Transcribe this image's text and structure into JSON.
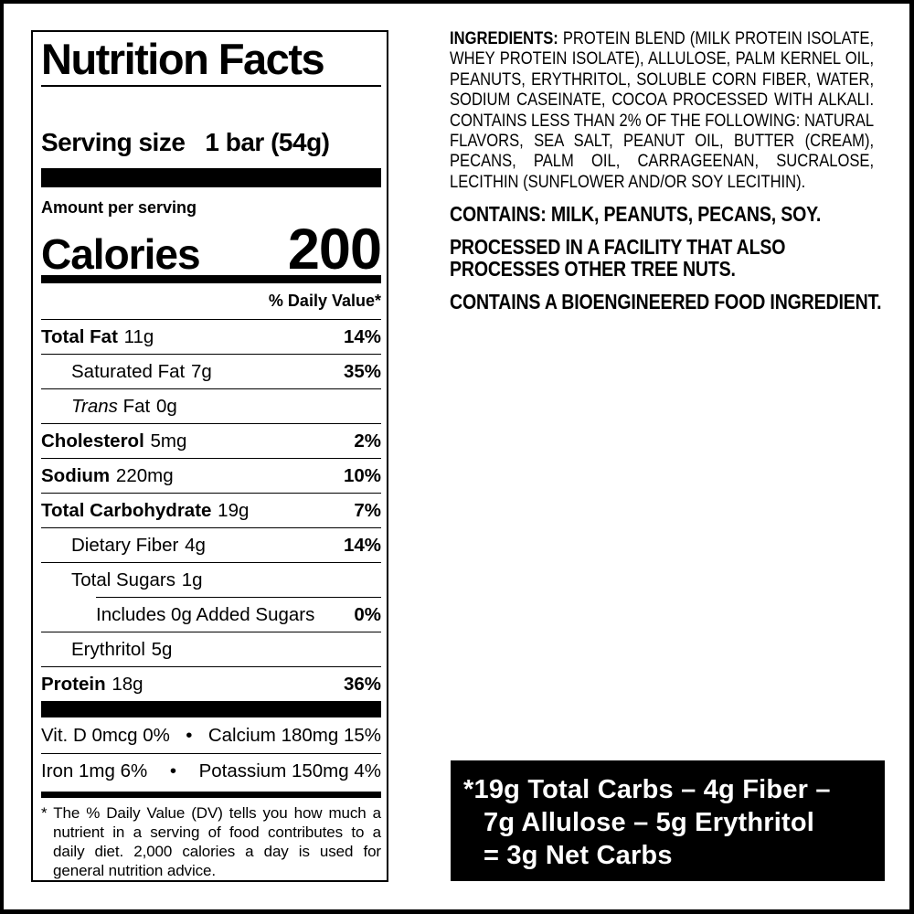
{
  "colors": {
    "ink": "#000000",
    "paper": "#ffffff",
    "net_carbs_bg": "#000000",
    "net_carbs_text": "#ffffff"
  },
  "nutrition_label": {
    "title": "Nutrition Facts",
    "serving_size_label": "Serving size",
    "serving_size_value": "1 bar (54g)",
    "amount_per_serving": "Amount per serving",
    "calories_label": "Calories",
    "calories_value": "200",
    "daily_value_header": "% Daily Value*",
    "rows": [
      {
        "name": "Total Fat",
        "amount": "11g",
        "dv": "14%"
      },
      {
        "name": "Saturated Fat",
        "amount": "7g",
        "dv": "35%"
      },
      {
        "name_italic": "Trans",
        "name": "Fat",
        "amount": "0g",
        "dv": ""
      },
      {
        "name": "Cholesterol",
        "amount": "5mg",
        "dv": "2%"
      },
      {
        "name": "Sodium",
        "amount": "220mg",
        "dv": "10%"
      },
      {
        "name": "Total Carbohydrate",
        "amount": "19g",
        "dv": "7%"
      },
      {
        "name": "Dietary Fiber",
        "amount": "4g",
        "dv": "14%"
      },
      {
        "name": "Total Sugars",
        "amount": "1g",
        "dv": ""
      },
      {
        "name": "Includes 0g Added Sugars",
        "amount": "",
        "dv": "0%"
      },
      {
        "name": "Erythritol",
        "amount": "5g",
        "dv": ""
      },
      {
        "name": "Protein",
        "amount": "18g",
        "dv": "36%"
      }
    ],
    "bullet": "•",
    "micronutrients": [
      {
        "left": "Vit. D 0mcg 0%",
        "right": "Calcium 180mg 15%"
      },
      {
        "left": "Iron 1mg 6%",
        "right": "Potassium 150mg 4%"
      }
    ],
    "footnote": "* The % Daily Value (DV) tells you how much a nutrient in a serving of food contributes to a daily diet. 2,000 calories a day is used for general nutrition advice."
  },
  "right_panel": {
    "ingredients_heading": "INGREDIENTS:",
    "ingredients_text": "PROTEIN BLEND (MILK PROTEIN ISOLATE, WHEY PROTEIN ISOLATE), ALLULOSE, PALM KERNEL OIL, PEANUTS, ERYTHRITOL, SOLUBLE CORN FIBER, WATER, SODIUM CASEINATE, COCOA PROCESSED WITH ALKALI. CONTAINS LESS THAN 2% OF THE FOLLOWING: NATURAL FLAVORS, SEA SALT, PEANUT OIL, BUTTER (CREAM), PECANS, PALM OIL, CARRAGEENAN, SUCRALOSE, LECITHIN (SUNFLOWER AND/OR SOY LECITHIN).",
    "statements": [
      {
        "lines": [
          "CONTAINS: MILK, PEANUTS, PECANS, SOY."
        ]
      },
      {
        "lines": [
          "PROCESSED IN A FACILITY THAT ALSO",
          "PROCESSES OTHER TREE NUTS."
        ]
      },
      {
        "lines": [
          "CONTAINS A BIOENGINEERED FOOD INGREDIENT."
        ]
      }
    ]
  },
  "net_carbs_box": {
    "lines": [
      "*19g Total Carbs – 4g Fiber –",
      "7g Allulose – 5g Erythritol",
      "= 3g Net Carbs"
    ]
  }
}
